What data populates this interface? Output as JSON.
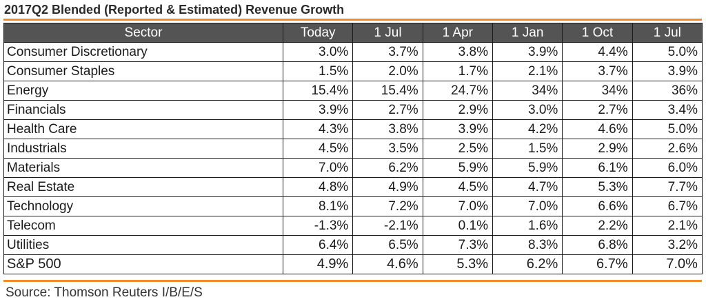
{
  "title": "2017Q2 Blended (Reported & Estimated) Revenue Growth",
  "columns": [
    "Sector",
    "Today",
    "1 Jul",
    "1 Apr",
    "1 Jan",
    "1 Oct",
    "1 Jul"
  ],
  "rows": [
    {
      "sector": "Consumer Discretionary",
      "values": [
        "3.0%",
        "3.7%",
        "3.8%",
        "3.9%",
        "4.4%",
        "5.0%"
      ]
    },
    {
      "sector": "Consumer Staples",
      "values": [
        "1.5%",
        "2.0%",
        "1.7%",
        "2.1%",
        "3.7%",
        "3.9%"
      ]
    },
    {
      "sector": "Energy",
      "values": [
        "15.4%",
        "15.4%",
        "24.7%",
        "34%",
        "34%",
        "36%"
      ]
    },
    {
      "sector": "Financials",
      "values": [
        "3.9%",
        "2.7%",
        "2.9%",
        "3.0%",
        "2.7%",
        "3.4%"
      ]
    },
    {
      "sector": "Health Care",
      "values": [
        "4.3%",
        "3.8%",
        "3.9%",
        "4.2%",
        "4.6%",
        "5.0%"
      ]
    },
    {
      "sector": "Industrials",
      "values": [
        "4.5%",
        "3.5%",
        "2.5%",
        "1.5%",
        "2.9%",
        "2.6%"
      ]
    },
    {
      "sector": "Materials",
      "values": [
        "7.0%",
        "6.2%",
        "5.9%",
        "5.9%",
        "6.1%",
        "6.0%"
      ]
    },
    {
      "sector": "Real Estate",
      "values": [
        "4.8%",
        "4.9%",
        "4.5%",
        "4.7%",
        "5.3%",
        "7.7%"
      ]
    },
    {
      "sector": "Technology",
      "values": [
        "8.1%",
        "7.2%",
        "7.0%",
        "7.0%",
        "6.6%",
        "6.7%"
      ]
    },
    {
      "sector": "Telecom",
      "values": [
        "-1.3%",
        "-2.1%",
        "0.1%",
        "1.6%",
        "2.2%",
        "2.1%"
      ]
    },
    {
      "sector": "Utilities",
      "values": [
        "6.4%",
        "6.5%",
        "7.3%",
        "8.3%",
        "6.8%",
        "3.2%"
      ]
    }
  ],
  "total": {
    "sector": "S&P 500",
    "values": [
      "4.9%",
      "4.6%",
      "5.3%",
      "6.2%",
      "6.7%",
      "7.0%"
    ]
  },
  "source": "Source: Thomson Reuters I/B/E/S",
  "colors": {
    "accent_rule": "#f28c28",
    "header_bg": "#545454",
    "header_text": "#ffffff",
    "border": "#1a1a1a"
  }
}
